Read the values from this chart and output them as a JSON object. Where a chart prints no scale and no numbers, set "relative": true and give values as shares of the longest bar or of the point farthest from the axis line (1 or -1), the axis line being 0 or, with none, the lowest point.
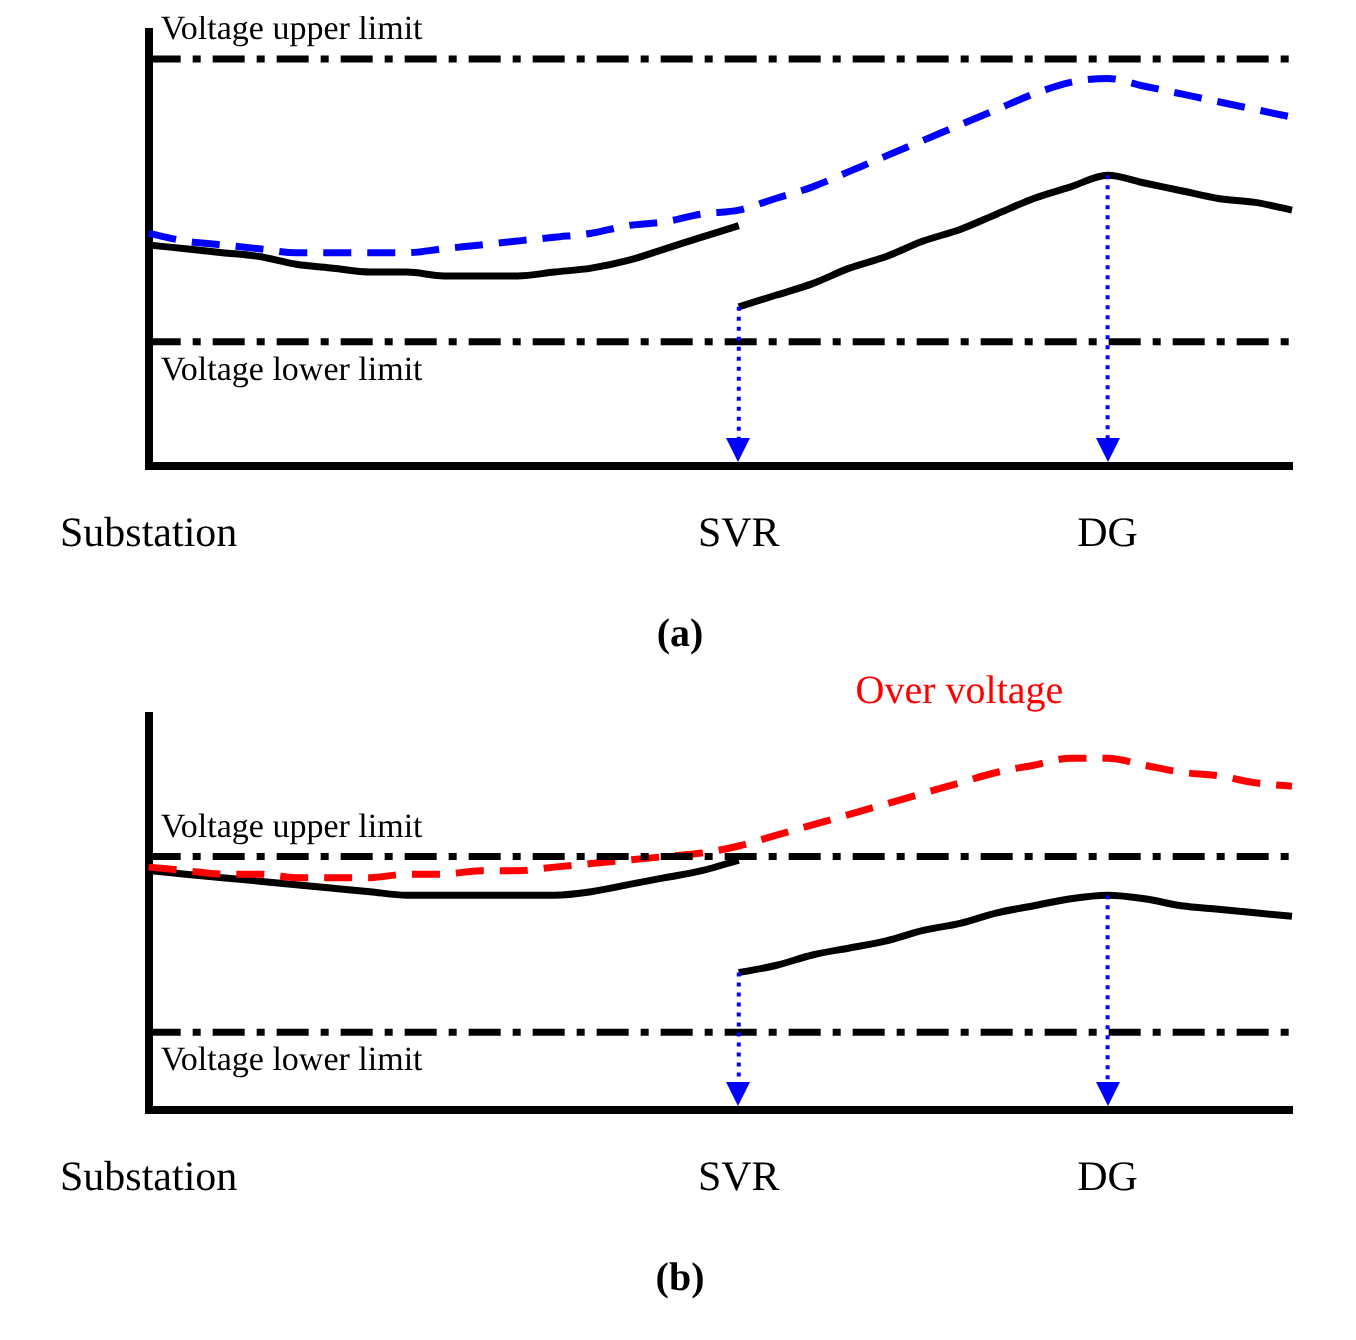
{
  "chart_data": [
    {
      "type": "line",
      "title": "(a)",
      "relative": true,
      "grid": false,
      "legend": false,
      "tick_labels": "x",
      "categories": [
        "Substation",
        null,
        null,
        null,
        null,
        null,
        null,
        null,
        null,
        null,
        null,
        null,
        null,
        null,
        null,
        null,
        "SVR",
        null,
        null,
        null,
        null,
        null,
        null,
        null,
        null,
        null,
        "DG",
        null,
        null,
        null,
        null,
        null
      ],
      "series": [
        {
          "color": "#0000ff",
          "line_style": "dashed",
          "values": [
            0.6,
            0.58,
            0.57,
            0.56,
            0.55,
            0.55,
            0.55,
            0.55,
            0.56,
            0.57,
            0.58,
            0.59,
            0.6,
            0.62,
            0.63,
            0.65,
            0.66,
            0.69,
            0.72,
            0.76,
            0.8,
            0.84,
            0.88,
            0.92,
            0.96,
            0.99,
            1.0,
            0.98,
            0.96,
            0.94,
            0.92,
            0.9
          ]
        },
        {
          "color": "#000000",
          "line_style": "solid",
          "values": [
            0.57,
            0.56,
            0.55,
            0.54,
            0.52,
            0.51,
            0.5,
            0.5,
            0.49,
            0.49,
            0.49,
            0.5,
            0.51,
            0.53,
            0.56,
            0.59,
            0.62,
            null,
            null,
            null,
            null,
            null,
            null,
            null,
            null,
            null,
            null,
            null,
            null,
            null,
            null,
            null
          ]
        },
        {
          "color": "#000000",
          "line_style": "solid",
          "values": [
            null,
            null,
            null,
            null,
            null,
            null,
            null,
            null,
            null,
            null,
            null,
            null,
            null,
            null,
            null,
            null,
            0.41,
            0.44,
            0.47,
            0.51,
            0.54,
            0.58,
            0.61,
            0.65,
            0.69,
            0.72,
            0.75,
            0.73,
            0.71,
            0.69,
            0.68,
            0.66
          ]
        }
      ],
      "ref_lines": [
        {
          "axis": "y",
          "value": 1.05,
          "label": "Voltage upper limit",
          "color": "#000000",
          "line_style": "dashdot"
        },
        {
          "axis": "y",
          "value": 0.32,
          "label": "Voltage lower limit",
          "color": "#000000",
          "line_style": "dashdot"
        },
        {
          "axis": "x",
          "value": "SVR",
          "color": "#0000ff",
          "line_style": "dotted"
        },
        {
          "axis": "x",
          "value": "DG",
          "color": "#0000ff",
          "line_style": "dotted"
        }
      ]
    },
    {
      "type": "line",
      "title": "(b)",
      "relative": true,
      "grid": false,
      "legend": false,
      "tick_labels": "x",
      "categories": [
        "Substation",
        null,
        null,
        null,
        null,
        null,
        null,
        null,
        null,
        null,
        null,
        null,
        null,
        null,
        null,
        null,
        "SVR",
        null,
        null,
        null,
        null,
        null,
        null,
        null,
        null,
        null,
        "DG",
        null,
        null,
        null,
        null,
        null
      ],
      "series": [
        {
          "color": "#ff0000",
          "line_style": "dashed",
          "values": [
            0.69,
            0.68,
            0.67,
            0.67,
            0.66,
            0.66,
            0.66,
            0.67,
            0.67,
            0.68,
            0.68,
            0.69,
            0.7,
            0.71,
            0.72,
            0.73,
            0.75,
            0.78,
            0.81,
            0.84,
            0.87,
            0.9,
            0.93,
            0.96,
            0.98,
            1.0,
            1.0,
            0.98,
            0.96,
            0.95,
            0.93,
            0.92
          ]
        },
        {
          "color": "#000000",
          "line_style": "solid",
          "values": [
            0.68,
            0.67,
            0.66,
            0.65,
            0.64,
            0.63,
            0.62,
            0.61,
            0.61,
            0.61,
            0.61,
            0.61,
            0.62,
            0.64,
            0.66,
            0.68,
            0.71,
            null,
            null,
            null,
            null,
            null,
            null,
            null,
            null,
            null,
            null,
            null,
            null,
            null,
            null,
            null
          ]
        },
        {
          "color": "#000000",
          "line_style": "solid",
          "values": [
            null,
            null,
            null,
            null,
            null,
            null,
            null,
            null,
            null,
            null,
            null,
            null,
            null,
            null,
            null,
            null,
            0.39,
            0.41,
            0.44,
            0.46,
            0.48,
            0.51,
            0.53,
            0.56,
            0.58,
            0.6,
            0.61,
            0.6,
            0.58,
            0.57,
            0.56,
            0.55
          ]
        }
      ],
      "ref_lines": [
        {
          "axis": "y",
          "value": 0.72,
          "label": "Voltage upper limit",
          "color": "#000000",
          "line_style": "dashdot"
        },
        {
          "axis": "y",
          "value": 0.22,
          "label": "Voltage lower limit",
          "color": "#000000",
          "line_style": "dashdot"
        },
        {
          "axis": "x",
          "value": "SVR",
          "color": "#0000ff",
          "line_style": "dotted"
        },
        {
          "axis": "x",
          "value": "DG",
          "color": "#0000ff",
          "line_style": "dotted"
        }
      ],
      "annotations": [
        "Over voltage"
      ]
    }
  ]
}
